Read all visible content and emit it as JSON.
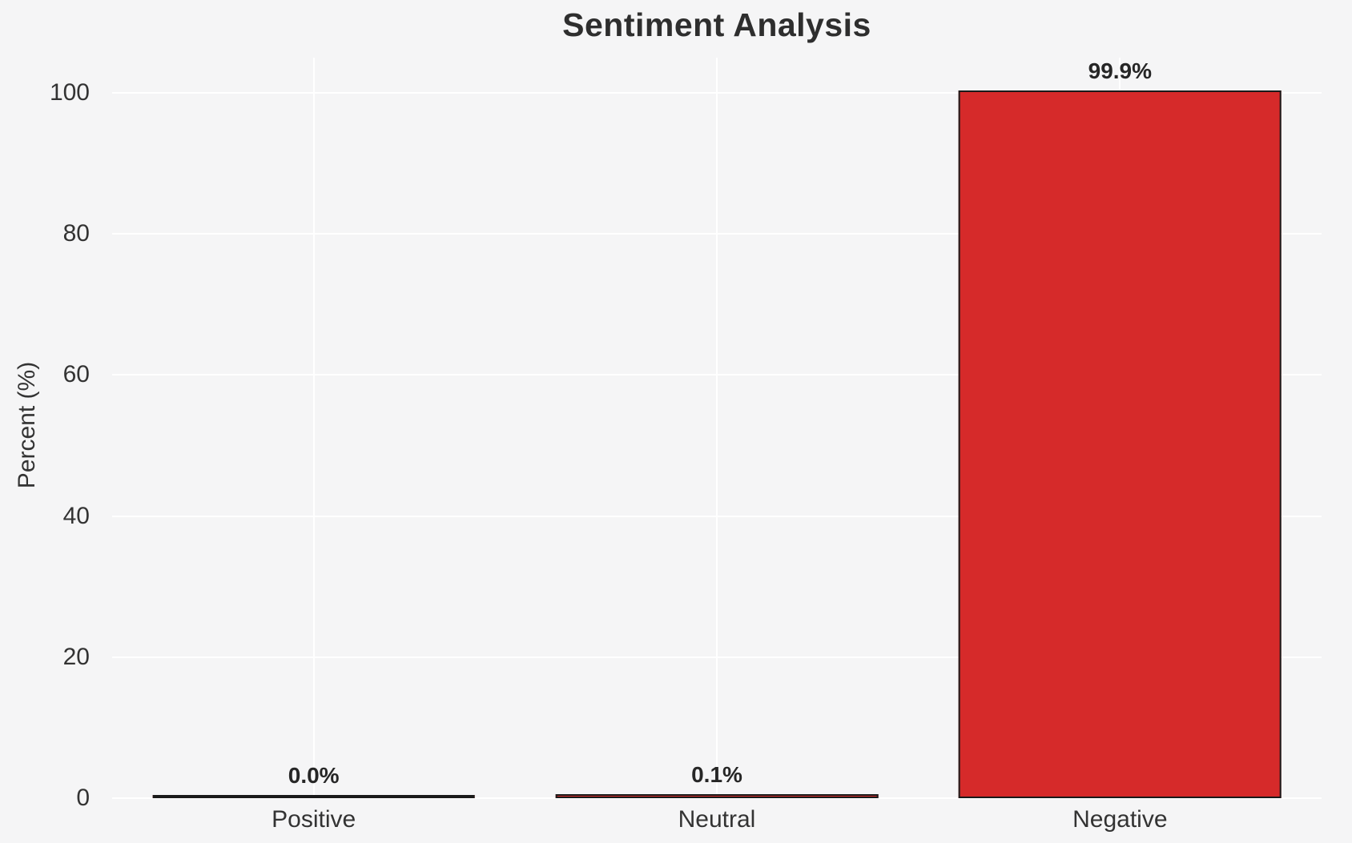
{
  "title": "Sentiment Analysis",
  "colors": {
    "background": "#f5f5f6",
    "grid": "#ffffff",
    "bar_fill": "#d62a2a",
    "bar_edge": "#1a1a1a",
    "title_text": "#2e2e2e",
    "axis_text": "#333333",
    "value_text": "#262626"
  },
  "chart_data": {
    "type": "bar",
    "title": "Sentiment Analysis",
    "categories": [
      "Positive",
      "Neutral",
      "Negative"
    ],
    "values": [
      0.0,
      0.1,
      99.9
    ],
    "value_labels": [
      "0.0%",
      "0.1%",
      "99.9%"
    ],
    "xlabel": "",
    "ylabel": "Percent (%)",
    "ylim": [
      0,
      105
    ],
    "yticks": [
      0,
      20,
      40,
      60,
      80,
      100
    ],
    "ytick_labels": [
      "0",
      "20",
      "40",
      "60",
      "80",
      "100"
    ],
    "grid": "on",
    "legend": "none",
    "bar_color": "#d62a2a",
    "bar_edge_color": "#1a1a1a",
    "bar_width_fraction": 0.8
  }
}
